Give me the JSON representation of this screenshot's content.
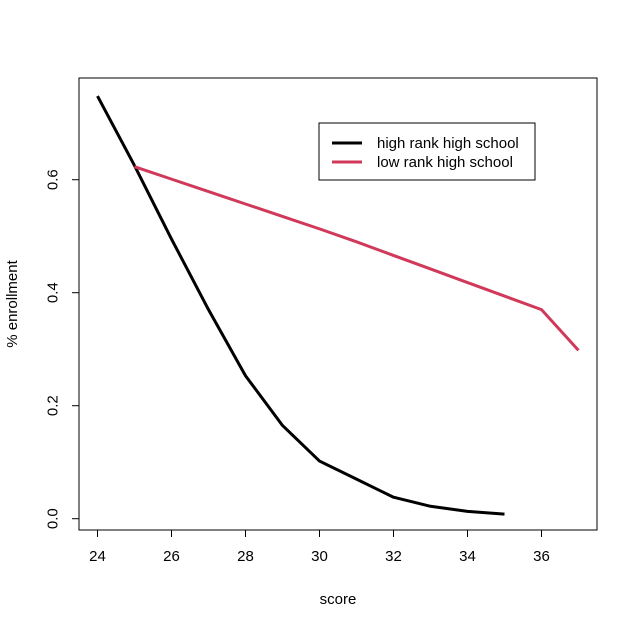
{
  "chart_data": {
    "type": "line",
    "title": "",
    "xlabel": "score",
    "ylabel": "% enrollment",
    "xlim": [
      23.5,
      37.5
    ],
    "ylim": [
      -0.02,
      0.78
    ],
    "x_ticks": [
      24,
      26,
      28,
      30,
      32,
      34,
      36
    ],
    "y_ticks": [
      0.0,
      0.2,
      0.4,
      0.6
    ],
    "y_tick_labels": [
      "0.0",
      "0.2",
      "0.4",
      "0.6"
    ],
    "legend_position": "top-right",
    "series": [
      {
        "name": "high rank high school",
        "color": "#000000",
        "x": [
          24,
          25,
          26,
          27,
          28,
          29,
          30,
          31,
          32,
          33,
          34,
          35
        ],
        "y": [
          0.748,
          0.625,
          0.495,
          0.37,
          0.253,
          0.165,
          0.102,
          0.07,
          0.038,
          0.022,
          0.013,
          0.008
        ]
      },
      {
        "name": "low rank high school",
        "color": "#D1395A",
        "x": [
          25,
          26,
          27,
          28,
          29,
          30,
          31,
          32,
          33,
          34,
          35,
          36,
          37
        ],
        "y": [
          0.623,
          0.601,
          0.579,
          0.557,
          0.535,
          0.513,
          0.49,
          0.466,
          0.442,
          0.418,
          0.394,
          0.37,
          0.298
        ]
      }
    ]
  }
}
